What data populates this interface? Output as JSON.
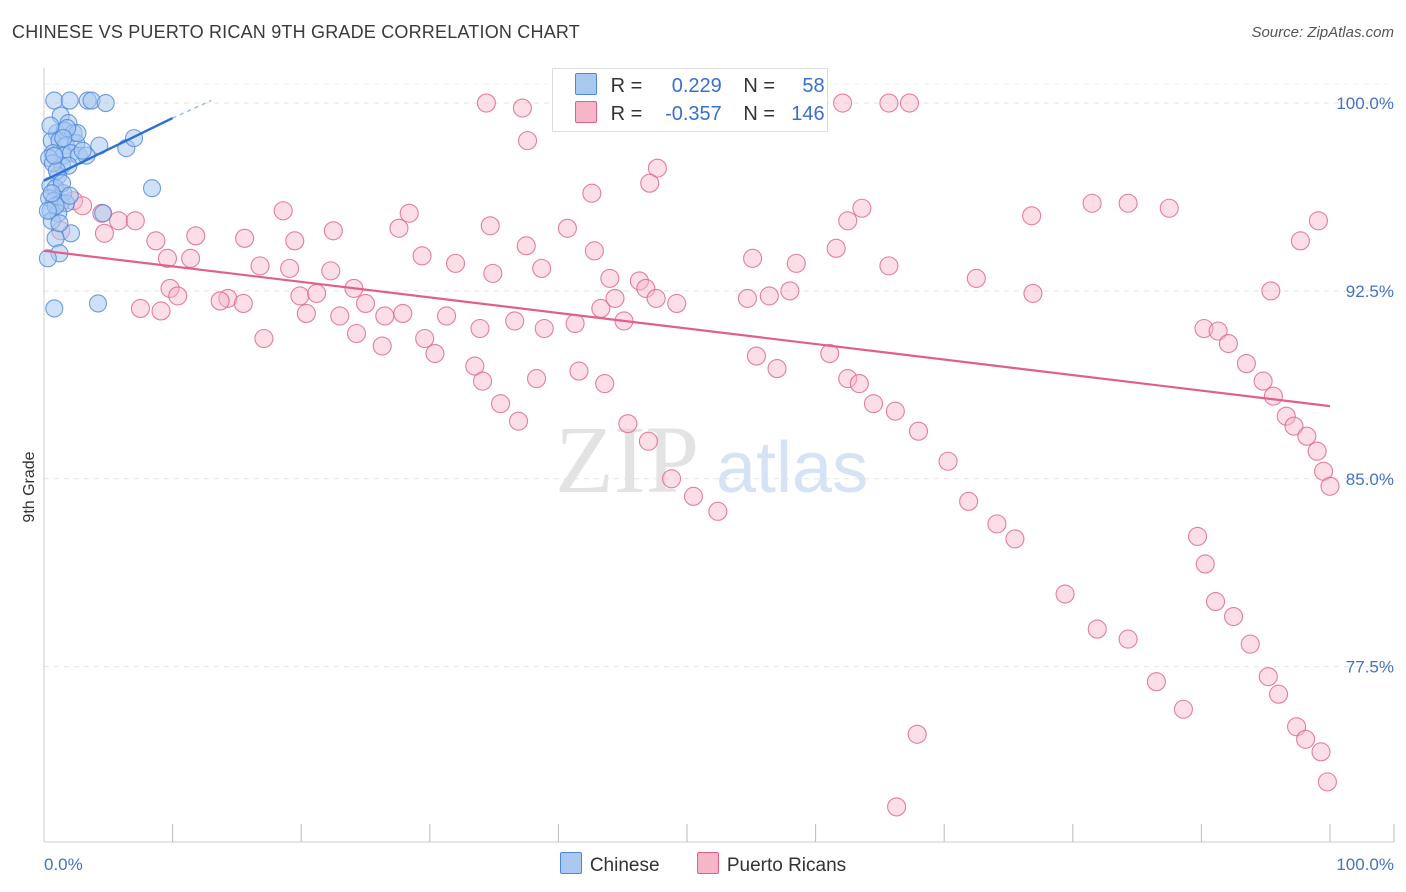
{
  "title": "CHINESE VS PUERTO RICAN 9TH GRADE CORRELATION CHART",
  "source": "Source: ZipAtlas.com",
  "watermark": {
    "zip": "ZIP",
    "atlas": "atlas"
  },
  "legend": {
    "rows": [
      {
        "r_label": "R =",
        "r_value": "0.229",
        "n_label": "N =",
        "n_value": "58",
        "color": "#a8c8f0"
      },
      {
        "r_label": "R =",
        "r_value": "-0.357",
        "n_label": "N =",
        "n_value": "146",
        "color": "#f7b6c8"
      }
    ]
  },
  "bottom_legend": [
    {
      "label": "Chinese",
      "color": "#a8c8f0"
    },
    {
      "label": "Puerto Ricans",
      "color": "#f7b6c8"
    }
  ],
  "chart_data": {
    "type": "scatter",
    "title": "CHINESE VS PUERTO RICAN 9TH GRADE CORRELATION CHART",
    "xlabel": "",
    "ylabel": "9th Grade",
    "xlim": [
      0,
      100
    ],
    "ylim": [
      70.5,
      101.0
    ],
    "x_tick_labels": [
      "0.0%",
      "100.0%"
    ],
    "y_ticks": [
      77.5,
      85.0,
      92.5,
      100.0
    ],
    "y_tick_labels": [
      "77.5%",
      "85.0%",
      "92.5%",
      "100.0%"
    ],
    "grid": true,
    "legend_position": "top-center",
    "series": [
      {
        "name": "Chinese",
        "color": "#4f86db",
        "fill": "#a8c8f0",
        "trend": {
          "x": [
            0,
            10
          ],
          "y": [
            96.9,
            99.4
          ],
          "dashed_to": [
            13,
            100.1
          ]
        },
        "points": [
          [
            0.8,
            100.1
          ],
          [
            2.0,
            100.1
          ],
          [
            3.4,
            100.1
          ],
          [
            3.7,
            100.1
          ],
          [
            4.8,
            100.0
          ],
          [
            1.3,
            99.5
          ],
          [
            1.9,
            99.2
          ],
          [
            1.0,
            98.8
          ],
          [
            1.6,
            98.9
          ],
          [
            2.3,
            98.8
          ],
          [
            0.6,
            98.5
          ],
          [
            1.2,
            98.5
          ],
          [
            1.7,
            98.3
          ],
          [
            2.5,
            98.4
          ],
          [
            4.3,
            98.3
          ],
          [
            6.4,
            98.2
          ],
          [
            7.0,
            98.6
          ],
          [
            0.7,
            98.0
          ],
          [
            1.5,
            97.9
          ],
          [
            2.1,
            98.0
          ],
          [
            2.7,
            97.9
          ],
          [
            3.3,
            97.9
          ],
          [
            1.4,
            97.5
          ],
          [
            1.9,
            97.5
          ],
          [
            1.1,
            97.1
          ],
          [
            0.5,
            96.7
          ],
          [
            0.9,
            96.6
          ],
          [
            1.5,
            96.4
          ],
          [
            0.4,
            96.2
          ],
          [
            0.8,
            96.1
          ],
          [
            1.3,
            96.0
          ],
          [
            1.7,
            96.0
          ],
          [
            0.5,
            95.7
          ],
          [
            1.1,
            95.6
          ],
          [
            0.6,
            95.3
          ],
          [
            8.4,
            96.6
          ],
          [
            4.6,
            95.6
          ],
          [
            2.1,
            94.8
          ],
          [
            0.9,
            94.6
          ],
          [
            1.2,
            94.0
          ],
          [
            0.3,
            93.8
          ],
          [
            0.8,
            91.8
          ],
          [
            4.2,
            92.0
          ],
          [
            0.4,
            97.8
          ],
          [
            0.7,
            97.6
          ],
          [
            1.0,
            97.3
          ],
          [
            1.4,
            96.8
          ],
          [
            2.0,
            96.3
          ],
          [
            2.6,
            98.8
          ],
          [
            0.5,
            99.1
          ],
          [
            1.8,
            99.0
          ],
          [
            3.0,
            98.1
          ],
          [
            0.9,
            95.9
          ],
          [
            0.6,
            96.4
          ],
          [
            1.2,
            95.2
          ],
          [
            0.3,
            95.7
          ],
          [
            0.8,
            97.9
          ],
          [
            1.5,
            98.6
          ]
        ]
      },
      {
        "name": "Puerto Ricans",
        "color": "#e0608a",
        "fill": "#f7b6c8",
        "trend": {
          "x": [
            0,
            100
          ],
          "y": [
            94.1,
            87.9
          ]
        },
        "points": [
          [
            34.4,
            100.0
          ],
          [
            37.2,
            99.8
          ],
          [
            47.4,
            100.0
          ],
          [
            49.2,
            100.0
          ],
          [
            57.6,
            100.0
          ],
          [
            59.5,
            100.0
          ],
          [
            62.1,
            100.0
          ],
          [
            65.7,
            100.0
          ],
          [
            67.3,
            100.0
          ],
          [
            37.6,
            98.5
          ],
          [
            47.7,
            97.4
          ],
          [
            47.1,
            96.8
          ],
          [
            42.6,
            96.4
          ],
          [
            81.5,
            96.0
          ],
          [
            84.3,
            96.0
          ],
          [
            63.6,
            95.8
          ],
          [
            76.8,
            95.5
          ],
          [
            2.3,
            96.1
          ],
          [
            3.0,
            95.9
          ],
          [
            4.5,
            95.6
          ],
          [
            5.8,
            95.3
          ],
          [
            7.1,
            95.3
          ],
          [
            18.6,
            95.7
          ],
          [
            28.4,
            95.6
          ],
          [
            27.6,
            95.0
          ],
          [
            34.7,
            95.1
          ],
          [
            40.7,
            95.0
          ],
          [
            62.5,
            95.3
          ],
          [
            61.6,
            94.2
          ],
          [
            97.7,
            94.5
          ],
          [
            99.1,
            95.3
          ],
          [
            87.5,
            95.8
          ],
          [
            1.3,
            94.9
          ],
          [
            4.7,
            94.8
          ],
          [
            8.7,
            94.5
          ],
          [
            11.8,
            94.7
          ],
          [
            15.6,
            94.6
          ],
          [
            19.5,
            94.5
          ],
          [
            22.5,
            94.9
          ],
          [
            37.5,
            94.3
          ],
          [
            42.8,
            94.1
          ],
          [
            55.1,
            93.8
          ],
          [
            58.5,
            93.6
          ],
          [
            65.7,
            93.5
          ],
          [
            9.6,
            93.8
          ],
          [
            11.4,
            93.8
          ],
          [
            16.8,
            93.5
          ],
          [
            19.1,
            93.4
          ],
          [
            22.3,
            93.3
          ],
          [
            29.4,
            93.9
          ],
          [
            32.0,
            93.6
          ],
          [
            34.9,
            93.2
          ],
          [
            38.7,
            93.4
          ],
          [
            44.0,
            93.0
          ],
          [
            46.3,
            92.9
          ],
          [
            46.8,
            92.6
          ],
          [
            47.6,
            92.2
          ],
          [
            49.2,
            92.0
          ],
          [
            54.7,
            92.2
          ],
          [
            56.4,
            92.3
          ],
          [
            58.0,
            92.5
          ],
          [
            9.8,
            92.6
          ],
          [
            10.4,
            92.3
          ],
          [
            14.3,
            92.2
          ],
          [
            15.5,
            92.0
          ],
          [
            19.9,
            92.3
          ],
          [
            21.2,
            92.4
          ],
          [
            24.1,
            92.6
          ],
          [
            25.0,
            92.0
          ],
          [
            26.5,
            91.5
          ],
          [
            27.9,
            91.6
          ],
          [
            31.3,
            91.5
          ],
          [
            33.9,
            91.0
          ],
          [
            36.6,
            91.3
          ],
          [
            38.9,
            91.0
          ],
          [
            41.3,
            91.2
          ],
          [
            43.3,
            91.8
          ],
          [
            44.4,
            92.2
          ],
          [
            45.1,
            91.3
          ],
          [
            7.5,
            91.8
          ],
          [
            9.1,
            91.7
          ],
          [
            13.7,
            92.1
          ],
          [
            17.1,
            90.6
          ],
          [
            20.4,
            91.6
          ],
          [
            23.0,
            91.5
          ],
          [
            24.3,
            90.8
          ],
          [
            26.3,
            90.3
          ],
          [
            29.6,
            90.6
          ],
          [
            30.4,
            90.0
          ],
          [
            33.5,
            89.5
          ],
          [
            34.1,
            88.9
          ],
          [
            35.5,
            88.0
          ],
          [
            36.9,
            87.3
          ],
          [
            38.3,
            89.0
          ],
          [
            41.6,
            89.3
          ],
          [
            43.6,
            88.8
          ],
          [
            45.4,
            87.2
          ],
          [
            47.0,
            86.5
          ],
          [
            48.8,
            85.0
          ],
          [
            50.5,
            84.3
          ],
          [
            52.4,
            83.7
          ],
          [
            55.4,
            89.9
          ],
          [
            57.0,
            89.4
          ],
          [
            61.1,
            90.0
          ],
          [
            62.5,
            89.0
          ],
          [
            63.4,
            88.8
          ],
          [
            64.5,
            88.0
          ],
          [
            66.2,
            87.7
          ],
          [
            68.0,
            86.9
          ],
          [
            70.3,
            85.7
          ],
          [
            71.9,
            84.1
          ],
          [
            74.1,
            83.2
          ],
          [
            75.5,
            82.6
          ],
          [
            79.4,
            80.4
          ],
          [
            81.9,
            79.0
          ],
          [
            84.3,
            78.6
          ],
          [
            86.5,
            76.9
          ],
          [
            88.6,
            75.8
          ],
          [
            89.7,
            82.7
          ],
          [
            90.3,
            81.6
          ],
          [
            91.1,
            80.1
          ],
          [
            92.5,
            79.5
          ],
          [
            93.8,
            78.4
          ],
          [
            95.2,
            77.1
          ],
          [
            96.0,
            76.4
          ],
          [
            97.4,
            75.1
          ],
          [
            98.1,
            74.6
          ],
          [
            99.3,
            74.1
          ],
          [
            99.8,
            72.9
          ],
          [
            90.2,
            91.0
          ],
          [
            91.3,
            90.9
          ],
          [
            92.1,
            90.4
          ],
          [
            93.5,
            89.6
          ],
          [
            94.8,
            88.9
          ],
          [
            95.6,
            88.3
          ],
          [
            96.6,
            87.5
          ],
          [
            97.2,
            87.1
          ],
          [
            98.2,
            86.7
          ],
          [
            99.0,
            86.1
          ],
          [
            99.5,
            85.3
          ],
          [
            100.0,
            84.7
          ],
          [
            66.3,
            71.9
          ],
          [
            67.9,
            74.8
          ],
          [
            95.4,
            92.5
          ],
          [
            72.5,
            93.0
          ],
          [
            76.9,
            92.4
          ]
        ]
      }
    ]
  }
}
